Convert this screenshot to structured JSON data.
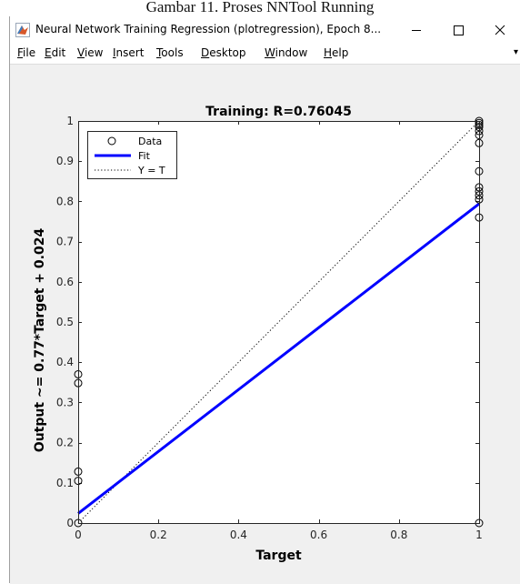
{
  "caption": "Gambar 11. Proses NNTool Running",
  "window": {
    "title": "Neural Network Training Regression (plotregression), Epoch 8...",
    "icon": "matlab-icon",
    "controls": [
      "minimize-icon",
      "maximize-icon",
      "close-icon"
    ]
  },
  "menu": [
    {
      "mnemonic": "F",
      "rest": "ile"
    },
    {
      "mnemonic": "E",
      "rest": "dit"
    },
    {
      "mnemonic": "V",
      "rest": "iew"
    },
    {
      "mnemonic": "I",
      "rest": "nsert"
    },
    {
      "mnemonic": "T",
      "rest": "ools"
    },
    {
      "mnemonic": "D",
      "rest": "esktop"
    },
    {
      "mnemonic": "W",
      "rest": "indow"
    },
    {
      "mnemonic": "H",
      "rest": "elp"
    }
  ],
  "chart_data": {
    "type": "scatter",
    "title": "Training: R=0.76045",
    "xlabel": "Target",
    "ylabel": "Output ~= 0.77*Target + 0.024",
    "xlim": [
      0,
      1
    ],
    "ylim": [
      0,
      1
    ],
    "xticks": [
      0,
      0.2,
      0.4,
      0.6,
      0.8,
      1
    ],
    "xtick_labels": [
      "0",
      "0.2",
      "0.4",
      "0.6",
      "0.8",
      "1"
    ],
    "yticks": [
      0,
      0.1,
      0.2,
      0.3,
      0.4,
      0.5,
      0.6,
      0.7,
      0.8,
      0.9,
      1
    ],
    "ytick_labels": [
      "0",
      "0.1",
      "0.2",
      "0.3",
      "0.4",
      "0.5",
      "0.6",
      "0.7",
      "0.8",
      "0.9",
      "1"
    ],
    "legend": {
      "location": "top-left",
      "entries": [
        "Data",
        "Fit",
        "Y = T"
      ]
    },
    "series": [
      {
        "name": "Data",
        "marker": "circle",
        "color": "#000000",
        "points": [
          [
            0,
            0.0
          ],
          [
            0,
            0.105
          ],
          [
            0,
            0.128
          ],
          [
            0,
            0.348
          ],
          [
            0,
            0.37
          ],
          [
            1,
            0.0
          ],
          [
            1,
            0.76
          ],
          [
            1,
            0.805
          ],
          [
            1,
            0.815
          ],
          [
            1,
            0.825
          ],
          [
            1,
            0.835
          ],
          [
            1,
            0.875
          ],
          [
            1,
            0.945
          ],
          [
            1,
            0.965
          ],
          [
            1,
            0.975
          ],
          [
            1,
            0.985
          ],
          [
            1,
            0.99
          ],
          [
            1,
            0.995
          ],
          [
            1,
            1.0
          ]
        ]
      },
      {
        "name": "Fit",
        "color": "#0000ff",
        "slope": 0.77,
        "intercept": 0.024
      },
      {
        "name": "Y = T",
        "color": "#000000",
        "style": "dotted"
      }
    ]
  }
}
